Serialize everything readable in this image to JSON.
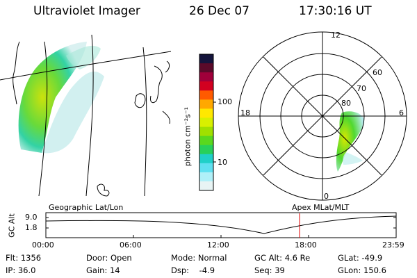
{
  "header": {
    "instrument": "Ultraviolet Imager",
    "date": "26 Dec 07",
    "time": "17:30:16 UT"
  },
  "colorbar": {
    "unit_label": "photon cm⁻²s⁻¹",
    "ticks": [
      "100",
      "10"
    ],
    "colors": [
      "#14143c",
      "#5a0a2a",
      "#a0003a",
      "#d20020",
      "#ff5a00",
      "#ffa800",
      "#ffe800",
      "#d8f000",
      "#a0e000",
      "#5ad81e",
      "#28d05a",
      "#20d0c8",
      "#60e0f0",
      "#b0f0f8",
      "#e8f4f4"
    ]
  },
  "polar_plot": {
    "mlt_labels": [
      "12",
      "18",
      "6",
      "0"
    ],
    "lat_labels": [
      "60",
      "70",
      "80"
    ]
  },
  "timeline": {
    "y_axis_title": "GC Alt",
    "y_ticks": [
      "9.0",
      "1.8"
    ],
    "left_label": "Geographic Lat/Lon",
    "right_label": "Apex  MLat/MLT",
    "x_ticks": [
      "00:00",
      "06:00",
      "12:00",
      "18:00",
      "23:59"
    ],
    "marker_color": "#e00000"
  },
  "info": {
    "flt": "Flt: 1356",
    "ip": "IP: 36.0",
    "door": "Door: Open",
    "gain": "Gain: 14",
    "mode": "Mode: Normal",
    "dsp": "Dsp:    -4.9",
    "gc_alt": "GC Alt: 4.6 Re",
    "seq": "Seq: 39",
    "glat": "GLat: -49.9",
    "glon": "GLon: 150.6"
  }
}
